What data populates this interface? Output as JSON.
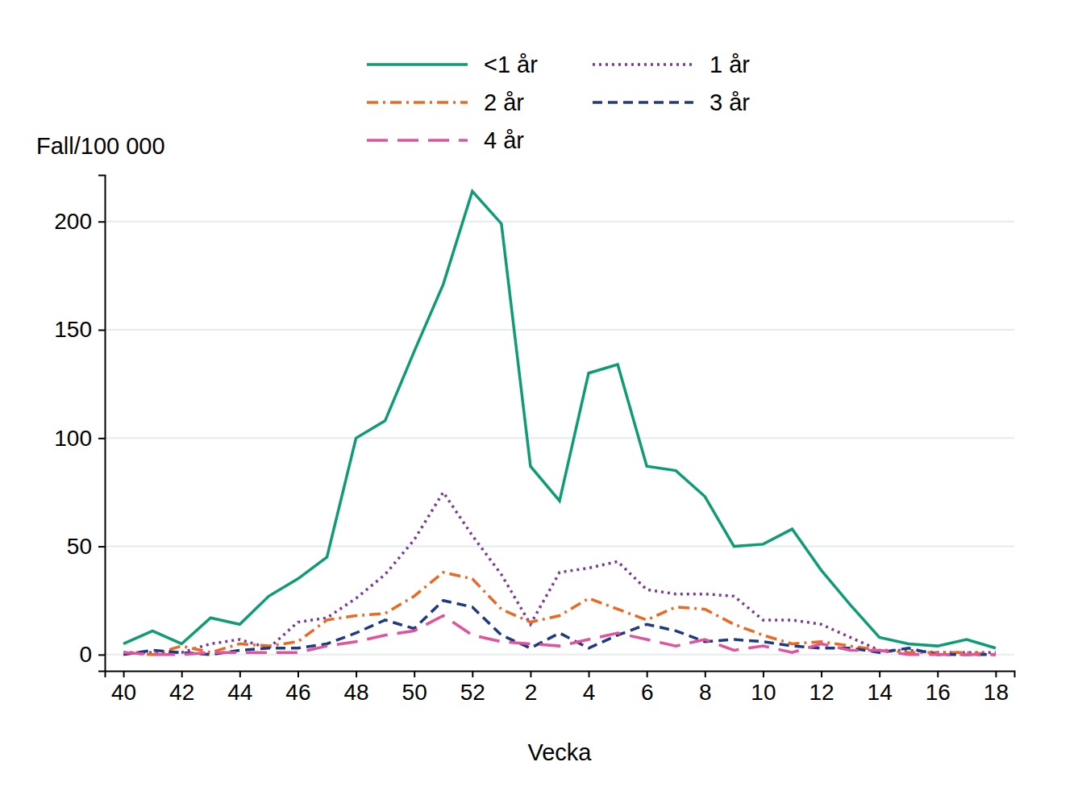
{
  "chart_data": {
    "type": "line",
    "y_label": "Fall/100 000",
    "x_label": "Vecka",
    "categories": [
      "40",
      null,
      "42",
      null,
      "44",
      null,
      "46",
      null,
      "48",
      null,
      "50",
      null,
      "52",
      null,
      "2",
      null,
      "4",
      null,
      "6",
      null,
      "8",
      null,
      "10",
      null,
      "12",
      null,
      "14",
      null,
      "16",
      null,
      "18"
    ],
    "series": [
      {
        "name": "<1 år",
        "color": "#0f9b76",
        "line_style": "solid",
        "values": [
          5,
          11,
          5,
          17,
          14,
          27,
          35,
          45,
          100,
          108,
          140,
          171,
          214,
          199,
          87,
          71,
          130,
          134,
          87,
          85,
          73,
          50,
          51,
          58,
          39,
          23,
          8,
          5,
          4,
          7,
          3
        ]
      },
      {
        "name": "1 år",
        "color": "#7b3a96",
        "line_style": "dotted",
        "values": [
          1,
          1,
          1,
          5,
          7,
          3,
          15,
          17,
          26,
          37,
          53,
          75,
          55,
          37,
          14,
          38,
          40,
          43,
          30,
          28,
          28,
          27,
          16,
          16,
          14,
          8,
          2,
          2,
          1,
          1,
          1
        ]
      },
      {
        "name": "2 år",
        "color": "#ea6a23",
        "line_style": "dashdot",
        "values": [
          1,
          0,
          4,
          1,
          5,
          4,
          6,
          16,
          18,
          19,
          27,
          38,
          35,
          21,
          15,
          18,
          26,
          21,
          16,
          22,
          21,
          14,
          9,
          5,
          6,
          4,
          2,
          1,
          1,
          1,
          0
        ]
      },
      {
        "name": "3 år",
        "color": "#1f3a82",
        "line_style": "dashed",
        "values": [
          0,
          2,
          1,
          0,
          2,
          3,
          3,
          5,
          10,
          16,
          12,
          25,
          22,
          9,
          3,
          10,
          3,
          9,
          14,
          11,
          6,
          7,
          6,
          4,
          3,
          3,
          1,
          3,
          0,
          0,
          0
        ]
      },
      {
        "name": "4 år",
        "color": "#e0539d",
        "line_style": "longdash",
        "values": [
          1,
          0,
          0,
          1,
          1,
          1,
          1,
          4,
          6,
          9,
          11,
          18,
          9,
          6,
          5,
          4,
          7,
          10,
          7,
          4,
          7,
          2,
          4,
          1,
          5,
          2,
          2,
          0,
          0,
          0,
          0
        ]
      }
    ],
    "ylim": [
      -7.5,
      221.5
    ],
    "yticks": [
      0,
      50,
      100,
      150,
      200
    ],
    "grid": true,
    "legend": "top"
  }
}
